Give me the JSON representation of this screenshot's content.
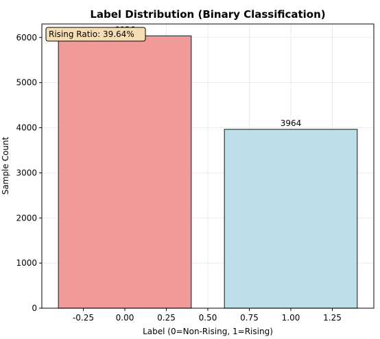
{
  "chart_data": {
    "type": "bar",
    "title": "Label Distribution (Binary Classification)",
    "xlabel": "Label (0=Non-Rising, 1=Rising)",
    "ylabel": "Sample Count",
    "categories": [
      "0",
      "1"
    ],
    "x": [
      0,
      1
    ],
    "values": [
      6036,
      3964
    ],
    "value_labels": [
      "6036",
      "3964"
    ],
    "bar_colors": [
      "#f09a9a",
      "#bddfea"
    ],
    "bar_edge_color": "#333333",
    "xlim": [
      -0.5,
      1.5
    ],
    "ylim": [
      0,
      6300
    ],
    "xticks": [
      -0.25,
      0.0,
      0.25,
      0.5,
      0.75,
      1.0,
      1.25
    ],
    "xtick_labels": [
      "-0.25",
      "0.00",
      "0.25",
      "0.50",
      "0.75",
      "1.00",
      "1.25"
    ],
    "yticks": [
      0,
      1000,
      2000,
      3000,
      4000,
      5000,
      6000
    ],
    "ytick_labels": [
      "0",
      "1000",
      "2000",
      "3000",
      "4000",
      "5000",
      "6000"
    ],
    "grid": true,
    "annotation": {
      "text": "Rising Ratio: 39.64%",
      "placement": "top-left",
      "box_color": "#f5deb3"
    }
  }
}
